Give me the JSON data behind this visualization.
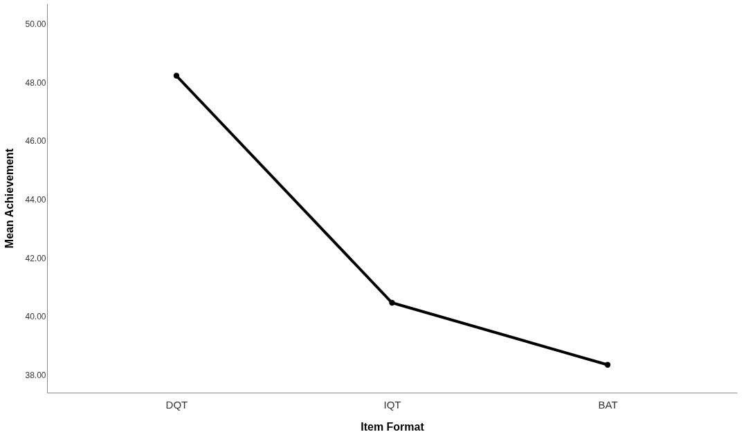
{
  "chart_data": {
    "type": "line",
    "xlabel": "Item Format",
    "ylabel": "Mean Achievement",
    "categories": [
      "DQT",
      "IQT",
      "BAT"
    ],
    "series": [
      {
        "color": "#000000",
        "values": [
          48.23,
          40.47,
          38.35
        ]
      }
    ],
    "ylim": [
      37.4,
      50.7
    ],
    "yticks": [
      {
        "value": 38,
        "label": "38.00"
      },
      {
        "value": 40,
        "label": "40.00"
      },
      {
        "value": 42,
        "label": "42.00"
      },
      {
        "value": 44,
        "label": "44.00"
      },
      {
        "value": 46,
        "label": "46.00"
      },
      {
        "value": 48,
        "label": "48.00"
      },
      {
        "value": 50,
        "label": "50.00"
      }
    ],
    "grid": false,
    "legend": false,
    "marker": "circle",
    "line_style": "solid"
  }
}
